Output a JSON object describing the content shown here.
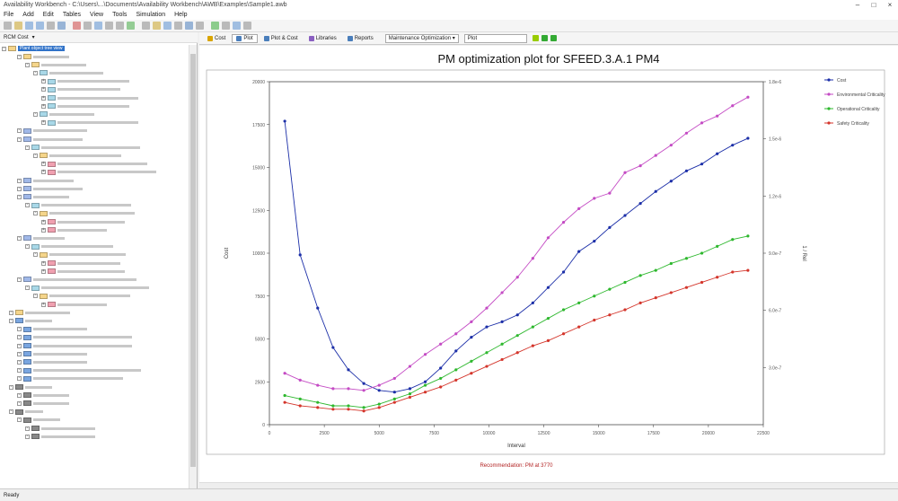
{
  "window": {
    "title": "Availability Workbench - C:\\Users\\...\\Documents\\Availability Workbench\\AWB\\Examples\\Sample1.awb"
  },
  "menu": [
    "File",
    "Add",
    "Edit",
    "Tables",
    "View",
    "Tools",
    "Simulation",
    "Help"
  ],
  "tree_selector": {
    "value": "RCM Cost"
  },
  "tree_root": "Plant object tree view",
  "tabs": [
    {
      "label": "Cost",
      "active": false,
      "color": "#d9a400"
    },
    {
      "label": "Plot",
      "active": true,
      "color": "#4a7ebb"
    },
    {
      "label": "Plot & Cost",
      "active": false,
      "color": "#4a7ebb"
    },
    {
      "label": "Libraries",
      "active": false,
      "color": "#8a5fc1"
    },
    {
      "label": "Reports",
      "active": false,
      "color": "#4a7ebb"
    }
  ],
  "optimization_select": {
    "value": "Maintenance Optimization"
  },
  "plot_select": {
    "value": "Plot"
  },
  "status": {
    "text": "Ready"
  },
  "chart_data": {
    "type": "line",
    "title": "PM optimization plot for SFEED.3.A.1 PM4",
    "xlabel": "Interval",
    "ylabel": "Cost",
    "y2label": "1 / Rel",
    "xlim": [
      0,
      22500
    ],
    "ylim": [
      0,
      20000
    ],
    "y2lim": [
      0,
      1.8e-06
    ],
    "xticks": [
      0,
      2500,
      5000,
      7500,
      10000,
      12500,
      15000,
      17500,
      20000,
      22500
    ],
    "yticks": [
      0,
      2500,
      5000,
      7500,
      10000,
      12500,
      15000,
      17500,
      20000
    ],
    "y2ticks": [
      3e-07,
      6e-07,
      9e-07,
      1.2e-06,
      1.5e-06,
      1.8e-06
    ],
    "x": [
      700,
      1400,
      2200,
      2900,
      3600,
      4300,
      5000,
      5700,
      6400,
      7100,
      7800,
      8500,
      9200,
      9900,
      10600,
      11300,
      12000,
      12700,
      13400,
      14100,
      14800,
      15500,
      16200,
      16900,
      17600,
      18300,
      19000,
      19700,
      20400,
      21100,
      21800
    ],
    "series": [
      {
        "name": "Cost",
        "color": "#1c2fa8",
        "values": [
          17700,
          9900,
          6800,
          4500,
          3200,
          2400,
          2000,
          1900,
          2100,
          2500,
          3300,
          4300,
          5100,
          5700,
          6000,
          6400,
          7100,
          8000,
          8900,
          10100,
          10700,
          11500,
          12200,
          12900,
          13600,
          14200,
          14800,
          15200,
          15800,
          16300,
          16700
        ]
      },
      {
        "name": "Environmental Criticality",
        "color": "#c44bc4",
        "values": [
          3000,
          2600,
          2300,
          2100,
          2100,
          2000,
          2300,
          2700,
          3400,
          4100,
          4700,
          5300,
          6000,
          6800,
          7700,
          8600,
          9700,
          10900,
          11800,
          12600,
          13200,
          13500,
          14700,
          15100,
          15700,
          16300,
          17000,
          17600,
          18000,
          18600,
          19100
        ]
      },
      {
        "name": "Operational Criticality",
        "color": "#2eb82e",
        "values": [
          1700,
          1500,
          1300,
          1100,
          1100,
          1000,
          1200,
          1500,
          1800,
          2300,
          2700,
          3200,
          3700,
          4200,
          4700,
          5200,
          5700,
          6200,
          6700,
          7100,
          7500,
          7900,
          8300,
          8700,
          9000,
          9400,
          9700,
          10000,
          10400,
          10800,
          11000
        ]
      },
      {
        "name": "Safety Criticality",
        "color": "#d4352b",
        "values": [
          1300,
          1100,
          1000,
          900,
          900,
          800,
          1000,
          1300,
          1600,
          1900,
          2200,
          2600,
          3000,
          3400,
          3800,
          4200,
          4600,
          4900,
          5300,
          5700,
          6100,
          6400,
          6700,
          7100,
          7400,
          7700,
          8000,
          8300,
          8600,
          8900,
          9000
        ]
      }
    ],
    "annotation": "Recommendation: PM at 3770"
  }
}
